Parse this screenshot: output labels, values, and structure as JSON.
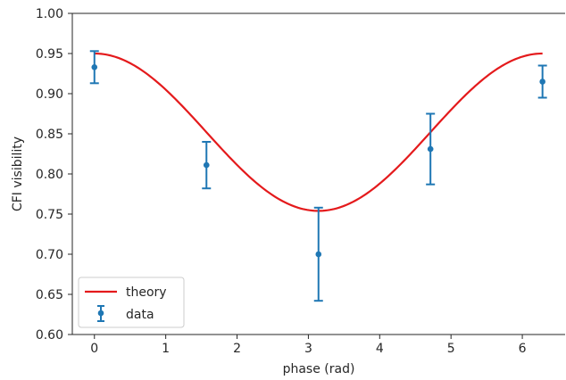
{
  "chart_data": {
    "type": "scatter",
    "title": "",
    "xlabel": "phase (rad)",
    "ylabel": "CFI visibility",
    "xlim": [
      -0.31,
      6.6
    ],
    "ylim": [
      0.6,
      1.0
    ],
    "x_ticks": [
      "0",
      "1",
      "2",
      "3",
      "4",
      "5",
      "6"
    ],
    "y_ticks": [
      "0.60",
      "0.65",
      "0.70",
      "0.75",
      "0.80",
      "0.85",
      "0.90",
      "0.95",
      "1.00"
    ],
    "grid": false,
    "legend_position": "lower-left",
    "series": [
      {
        "name": "theory",
        "kind": "line",
        "color": "#e41a1c",
        "model": "0.852 + 0.098*cos(x)",
        "x_range": [
          0,
          6.283
        ]
      },
      {
        "name": "data",
        "kind": "errorbar",
        "color": "#1f77b4",
        "points": [
          {
            "x": 0.0,
            "y": 0.933,
            "yerr": 0.02
          },
          {
            "x": 1.571,
            "y": 0.811,
            "yerr": 0.029
          },
          {
            "x": 3.142,
            "y": 0.7,
            "yerr": 0.058
          },
          {
            "x": 4.712,
            "y": 0.831,
            "yerr": 0.044
          },
          {
            "x": 6.283,
            "y": 0.915,
            "yerr": 0.02
          }
        ]
      }
    ]
  }
}
